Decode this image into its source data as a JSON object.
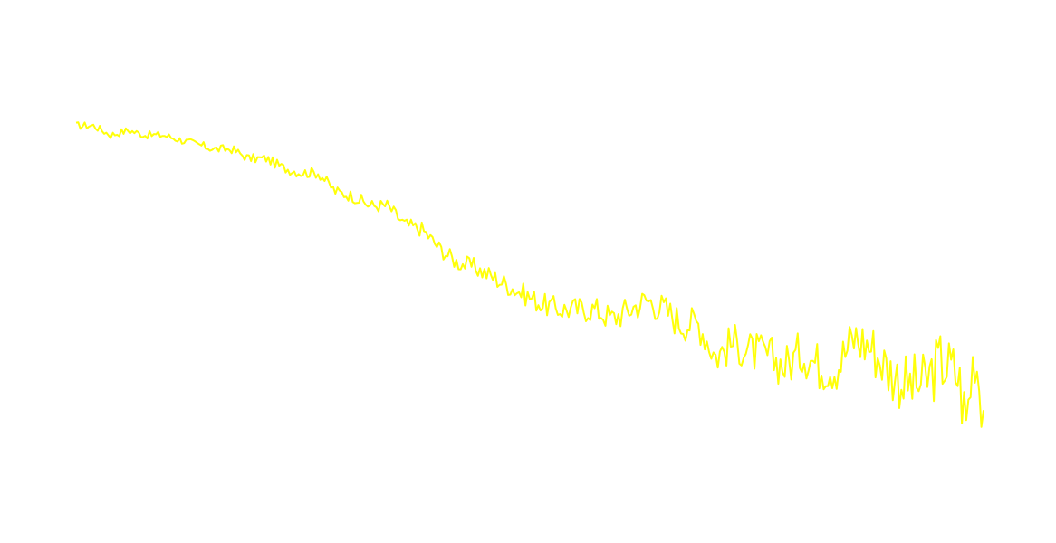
{
  "chart_data": {
    "type": "line",
    "title": "",
    "xlabel": "",
    "ylabel": "",
    "grid": false,
    "legend": "none",
    "xlim": [
      0,
      100
    ],
    "ylim": [
      0,
      1
    ],
    "series": [
      {
        "color": "#ffff0a",
        "stroke_width": 2,
        "x": [
          0,
          1.91,
          3.81,
          5.72,
          7.62,
          9.53,
          11.43,
          13.34,
          15.25,
          17.15,
          19.06,
          20.96,
          22.87,
          24.78,
          26.68,
          28.59,
          30.49,
          32.4,
          34.3,
          36.21,
          38.12,
          40.02,
          41.93,
          43.83,
          45.74,
          47.65,
          49.55,
          51.46,
          53.36,
          55.27,
          57.17,
          59.08,
          60.99,
          62.89,
          64.8,
          66.7,
          68.61,
          70.52,
          72.42,
          74.33,
          76.23,
          78.14,
          80.04,
          81.95,
          83.86,
          85.76,
          87.67,
          89.57,
          91.48,
          93.39,
          95.29,
          97.2,
          98.1,
          99.0,
          100
        ],
        "y": [
          0.81,
          0.81,
          0.79,
          0.8,
          0.79,
          0.79,
          0.78,
          0.77,
          0.76,
          0.76,
          0.74,
          0.74,
          0.72,
          0.71,
          0.71,
          0.67,
          0.66,
          0.64,
          0.64,
          0.6,
          0.59,
          0.55,
          0.52,
          0.51,
          0.49,
          0.47,
          0.45,
          0.43,
          0.42,
          0.42,
          0.42,
          0.4,
          0.42,
          0.44,
          0.42,
          0.39,
          0.39,
          0.32,
          0.35,
          0.33,
          0.32,
          0.3,
          0.33,
          0.3,
          0.3,
          0.36,
          0.34,
          0.29,
          0.26,
          0.26,
          0.31,
          0.28,
          0.18,
          0.34,
          0.21
        ]
      }
    ]
  }
}
